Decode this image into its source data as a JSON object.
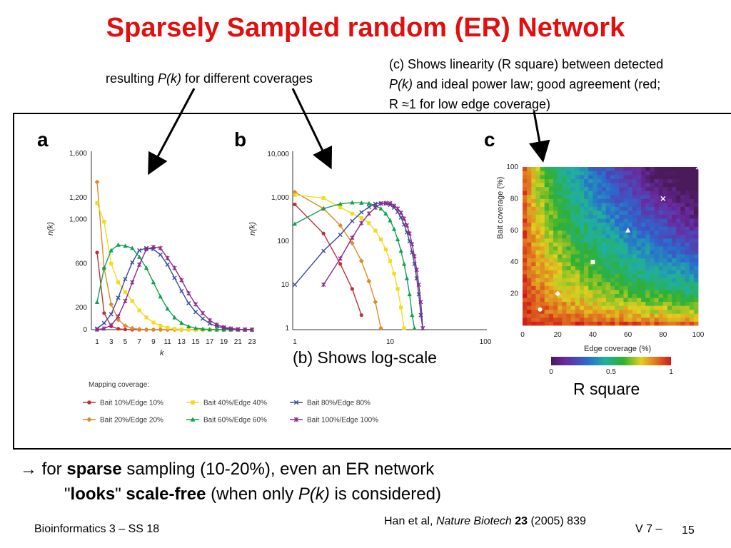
{
  "slide": {
    "title": "Sparsely Sampled random (ER) Network",
    "note_a_prefix": "resulting ",
    "note_a_italic": "P(k)",
    "note_a_suffix": " for different coverages",
    "note_c_line1": "(c) Shows linearity (R square) between detected",
    "note_c_line2_italic": "P(k)",
    "note_c_line2_rest": " and ideal power law; good agreement (red;",
    "note_c_line3": "R ≈1 for low edge coverage)",
    "b_caption": "(b) Shows log-scale",
    "c_caption": "R square",
    "conclusion_arrow": "→ for ",
    "conclusion_bold1": "sparse",
    "conclusion_rest1": " sampling (10-20%), even an ER network",
    "conclusion_q1": "\"",
    "conclusion_bold2": "looks",
    "conclusion_q2": "\" ",
    "conclusion_bold3": "scale-free",
    "conclusion_rest2": " (when only ",
    "conclusion_italic": "P(k)",
    "conclusion_rest3": " is considered)",
    "footer_left": "Bioinformatics 3 – SS 18",
    "footer_cite_a": "Han et al,  ",
    "footer_cite_journal": "Nature Biotech",
    "footer_cite_vol": " 23",
    "footer_cite_rest": " (2005) 839",
    "footer_lecture": "V 7 –",
    "footer_page": "15"
  },
  "colors": {
    "title": "#e01010",
    "s10": "#c0303a",
    "s20": "#e08a28",
    "s40": "#f0dc20",
    "s60": "#12a050",
    "s80": "#3a4aa0",
    "s100": "#8a2a8a"
  },
  "chart_data": [
    {
      "type": "line",
      "panel": "a",
      "xlabel": "k",
      "ylabel": "n(k)",
      "x_ticks": [
        "1",
        "3",
        "5",
        "7",
        "9",
        "11",
        "13",
        "15",
        "17",
        "19",
        "21",
        "23"
      ],
      "y_ticks": [
        "0",
        "200",
        "600",
        "1,000",
        "1,200",
        "1,600"
      ],
      "xlim": [
        1,
        23
      ],
      "ylim": [
        0,
        1600
      ],
      "k": [
        1,
        2,
        3,
        4,
        5,
        6,
        7,
        8,
        9,
        10,
        11,
        12,
        13,
        14,
        15,
        16,
        17,
        18,
        19,
        20,
        21,
        22,
        23
      ],
      "series": [
        {
          "name": "Bait 10%/Edge 10%",
          "values": [
            700,
            150,
            30,
            8,
            2,
            0,
            0,
            0,
            0,
            0,
            0,
            0,
            0,
            0,
            0,
            0,
            0,
            0,
            0,
            0,
            0,
            0,
            0
          ]
        },
        {
          "name": "Bait 20%/Edge 20%",
          "values": [
            1340,
            560,
            230,
            90,
            35,
            12,
            4,
            1,
            0,
            0,
            0,
            0,
            0,
            0,
            0,
            0,
            0,
            0,
            0,
            0,
            0,
            0,
            0
          ]
        },
        {
          "name": "Bait 40%/Edge 40%",
          "values": [
            1150,
            980,
            600,
            430,
            340,
            260,
            175,
            110,
            65,
            35,
            18,
            8,
            3,
            1,
            0,
            0,
            0,
            0,
            0,
            0,
            0,
            0,
            0
          ]
        },
        {
          "name": "Bait 60%/Edge 60%",
          "values": [
            250,
            560,
            720,
            770,
            760,
            740,
            660,
            560,
            430,
            300,
            190,
            110,
            60,
            30,
            14,
            6,
            2,
            1,
            0,
            0,
            0,
            0,
            0
          ]
        },
        {
          "name": "Bait 80%/Edge 80%",
          "values": [
            10,
            60,
            140,
            290,
            460,
            610,
            720,
            740,
            730,
            680,
            590,
            470,
            350,
            240,
            160,
            100,
            55,
            30,
            14,
            6,
            2,
            1,
            0
          ]
        },
        {
          "name": "Bait 100%/Edge 100%",
          "values": [
            0,
            10,
            40,
            120,
            260,
            430,
            590,
            730,
            750,
            740,
            650,
            560,
            450,
            330,
            230,
            150,
            85,
            45,
            22,
            10,
            4,
            1,
            0
          ]
        }
      ]
    },
    {
      "type": "line",
      "panel": "b",
      "xlabel": "",
      "ylabel": "n(k)",
      "x_ticks": [
        "1",
        "10",
        "100"
      ],
      "y_ticks": [
        "1",
        "10",
        "100",
        "1,000",
        "10,000"
      ],
      "xlim": [
        1,
        100
      ],
      "ylim": [
        1,
        10000
      ],
      "log_x": true,
      "log_y": true
    },
    {
      "type": "heatmap",
      "panel": "c",
      "xlabel": "Edge coverage  (%)",
      "ylabel": "Bait coverage (%)",
      "x_ticks": [
        "0",
        "20",
        "40",
        "60",
        "80",
        "100"
      ],
      "y_ticks": [
        "20",
        "40",
        "60",
        "80",
        "100"
      ],
      "xlim": [
        0,
        100
      ],
      "ylim": [
        0,
        100
      ],
      "colorbar_ticks": [
        "0",
        "0.5",
        "1"
      ],
      "colorbar_range": [
        0,
        1
      ],
      "markers": [
        {
          "x": 10,
          "y": 10,
          "shape": "circle"
        },
        {
          "x": 20,
          "y": 20,
          "shape": "diamond"
        },
        {
          "x": 40,
          "y": 40,
          "shape": "square"
        },
        {
          "x": 60,
          "y": 60,
          "shape": "triangle"
        },
        {
          "x": 80,
          "y": 80,
          "shape": "x"
        },
        {
          "x": 100,
          "y": 100,
          "shape": "star"
        }
      ]
    }
  ],
  "legend": {
    "title": "Mapping coverage:",
    "items": [
      "Bait 10%/Edge 10%",
      "Bait 40%/Edge 40%",
      "Bait 80%/Edge 80%",
      "Bait 20%/Edge 20%",
      "Bait 60%/Edge 60%",
      "Bait 100%/Edge 100%"
    ]
  },
  "panel_labels": [
    "a",
    "b",
    "c"
  ]
}
